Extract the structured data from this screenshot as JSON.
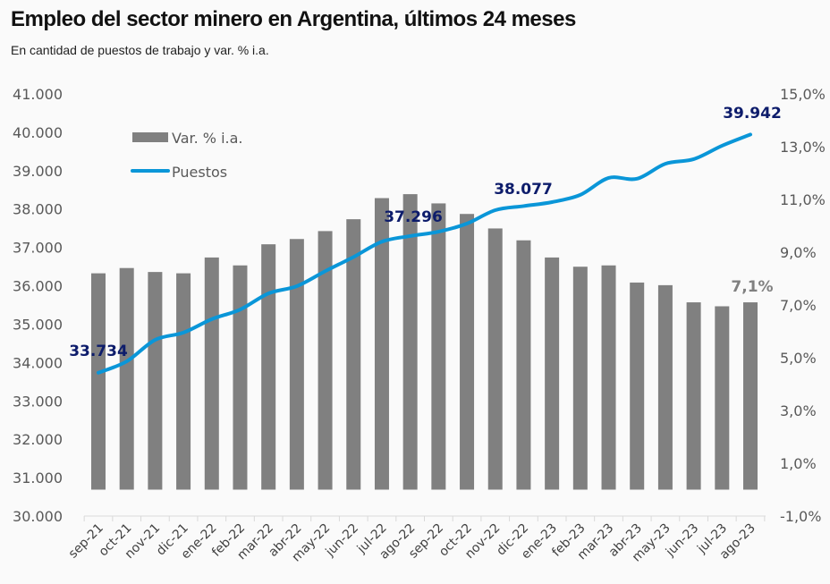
{
  "chart_data": {
    "type": "bar+line",
    "title": "Empleo del sector minero en Argentina, últimos 24 meses",
    "subtitle": "En cantidad de puestos de trabajo y var. % i.a.",
    "categories": [
      "sep-21",
      "oct-21",
      "nov-21",
      "dic-21",
      "ene-22",
      "feb-22",
      "mar-22",
      "abr-22",
      "may-22",
      "jun-22",
      "jul-22",
      "ago-22",
      "sep-22",
      "oct-22",
      "nov-22",
      "dic-22",
      "ene-23",
      "feb-23",
      "mar-23",
      "abr-23",
      "may-23",
      "jun-23",
      "jul-23",
      "ago-23"
    ],
    "series": [
      {
        "name": "Var. % i.a.",
        "type": "bar",
        "axis": "right",
        "color": "#808080",
        "values": [
          8.2,
          8.4,
          8.25,
          8.2,
          8.8,
          8.5,
          9.3,
          9.5,
          9.8,
          10.25,
          11.05,
          11.2,
          10.85,
          10.45,
          9.9,
          9.45,
          8.8,
          8.45,
          8.5,
          7.85,
          7.75,
          7.1,
          6.95,
          7.1
        ]
      },
      {
        "name": "Puestos",
        "type": "line",
        "axis": "left",
        "color": "#0a96d8",
        "values": [
          33734,
          34030,
          34590,
          34780,
          35130,
          35380,
          35800,
          35990,
          36380,
          36750,
          37150,
          37296,
          37410,
          37620,
          37970,
          38077,
          38180,
          38370,
          38810,
          38790,
          39180,
          39300,
          39650,
          39942
        ]
      }
    ],
    "data_labels": [
      {
        "series": "Puestos",
        "category": "sep-21",
        "text": "33.734"
      },
      {
        "series": "Puestos",
        "category": "ago-22",
        "text": "37.296"
      },
      {
        "series": "Puestos",
        "category": "dic-22",
        "text": "38.077"
      },
      {
        "series": "Puestos",
        "category": "ago-23",
        "text": "39.942"
      },
      {
        "series": "Var. % i.a.",
        "category": "ago-23",
        "text": "7,1%"
      }
    ],
    "left_axis": {
      "ylim": [
        30000,
        41000
      ],
      "ticks": [
        "30.000",
        "31.000",
        "32.000",
        "33.000",
        "34.000",
        "35.000",
        "36.000",
        "37.000",
        "38.000",
        "39.000",
        "40.000",
        "41.000"
      ]
    },
    "right_axis": {
      "ylim": [
        -1,
        15
      ],
      "ticks": [
        "-1,0%",
        "1,0%",
        "3,0%",
        "5,0%",
        "7,0%",
        "9,0%",
        "11,0%",
        "13,0%",
        "15,0%"
      ]
    },
    "grid": false,
    "legend": "top-left",
    "label_color": "#0d1c6b"
  }
}
